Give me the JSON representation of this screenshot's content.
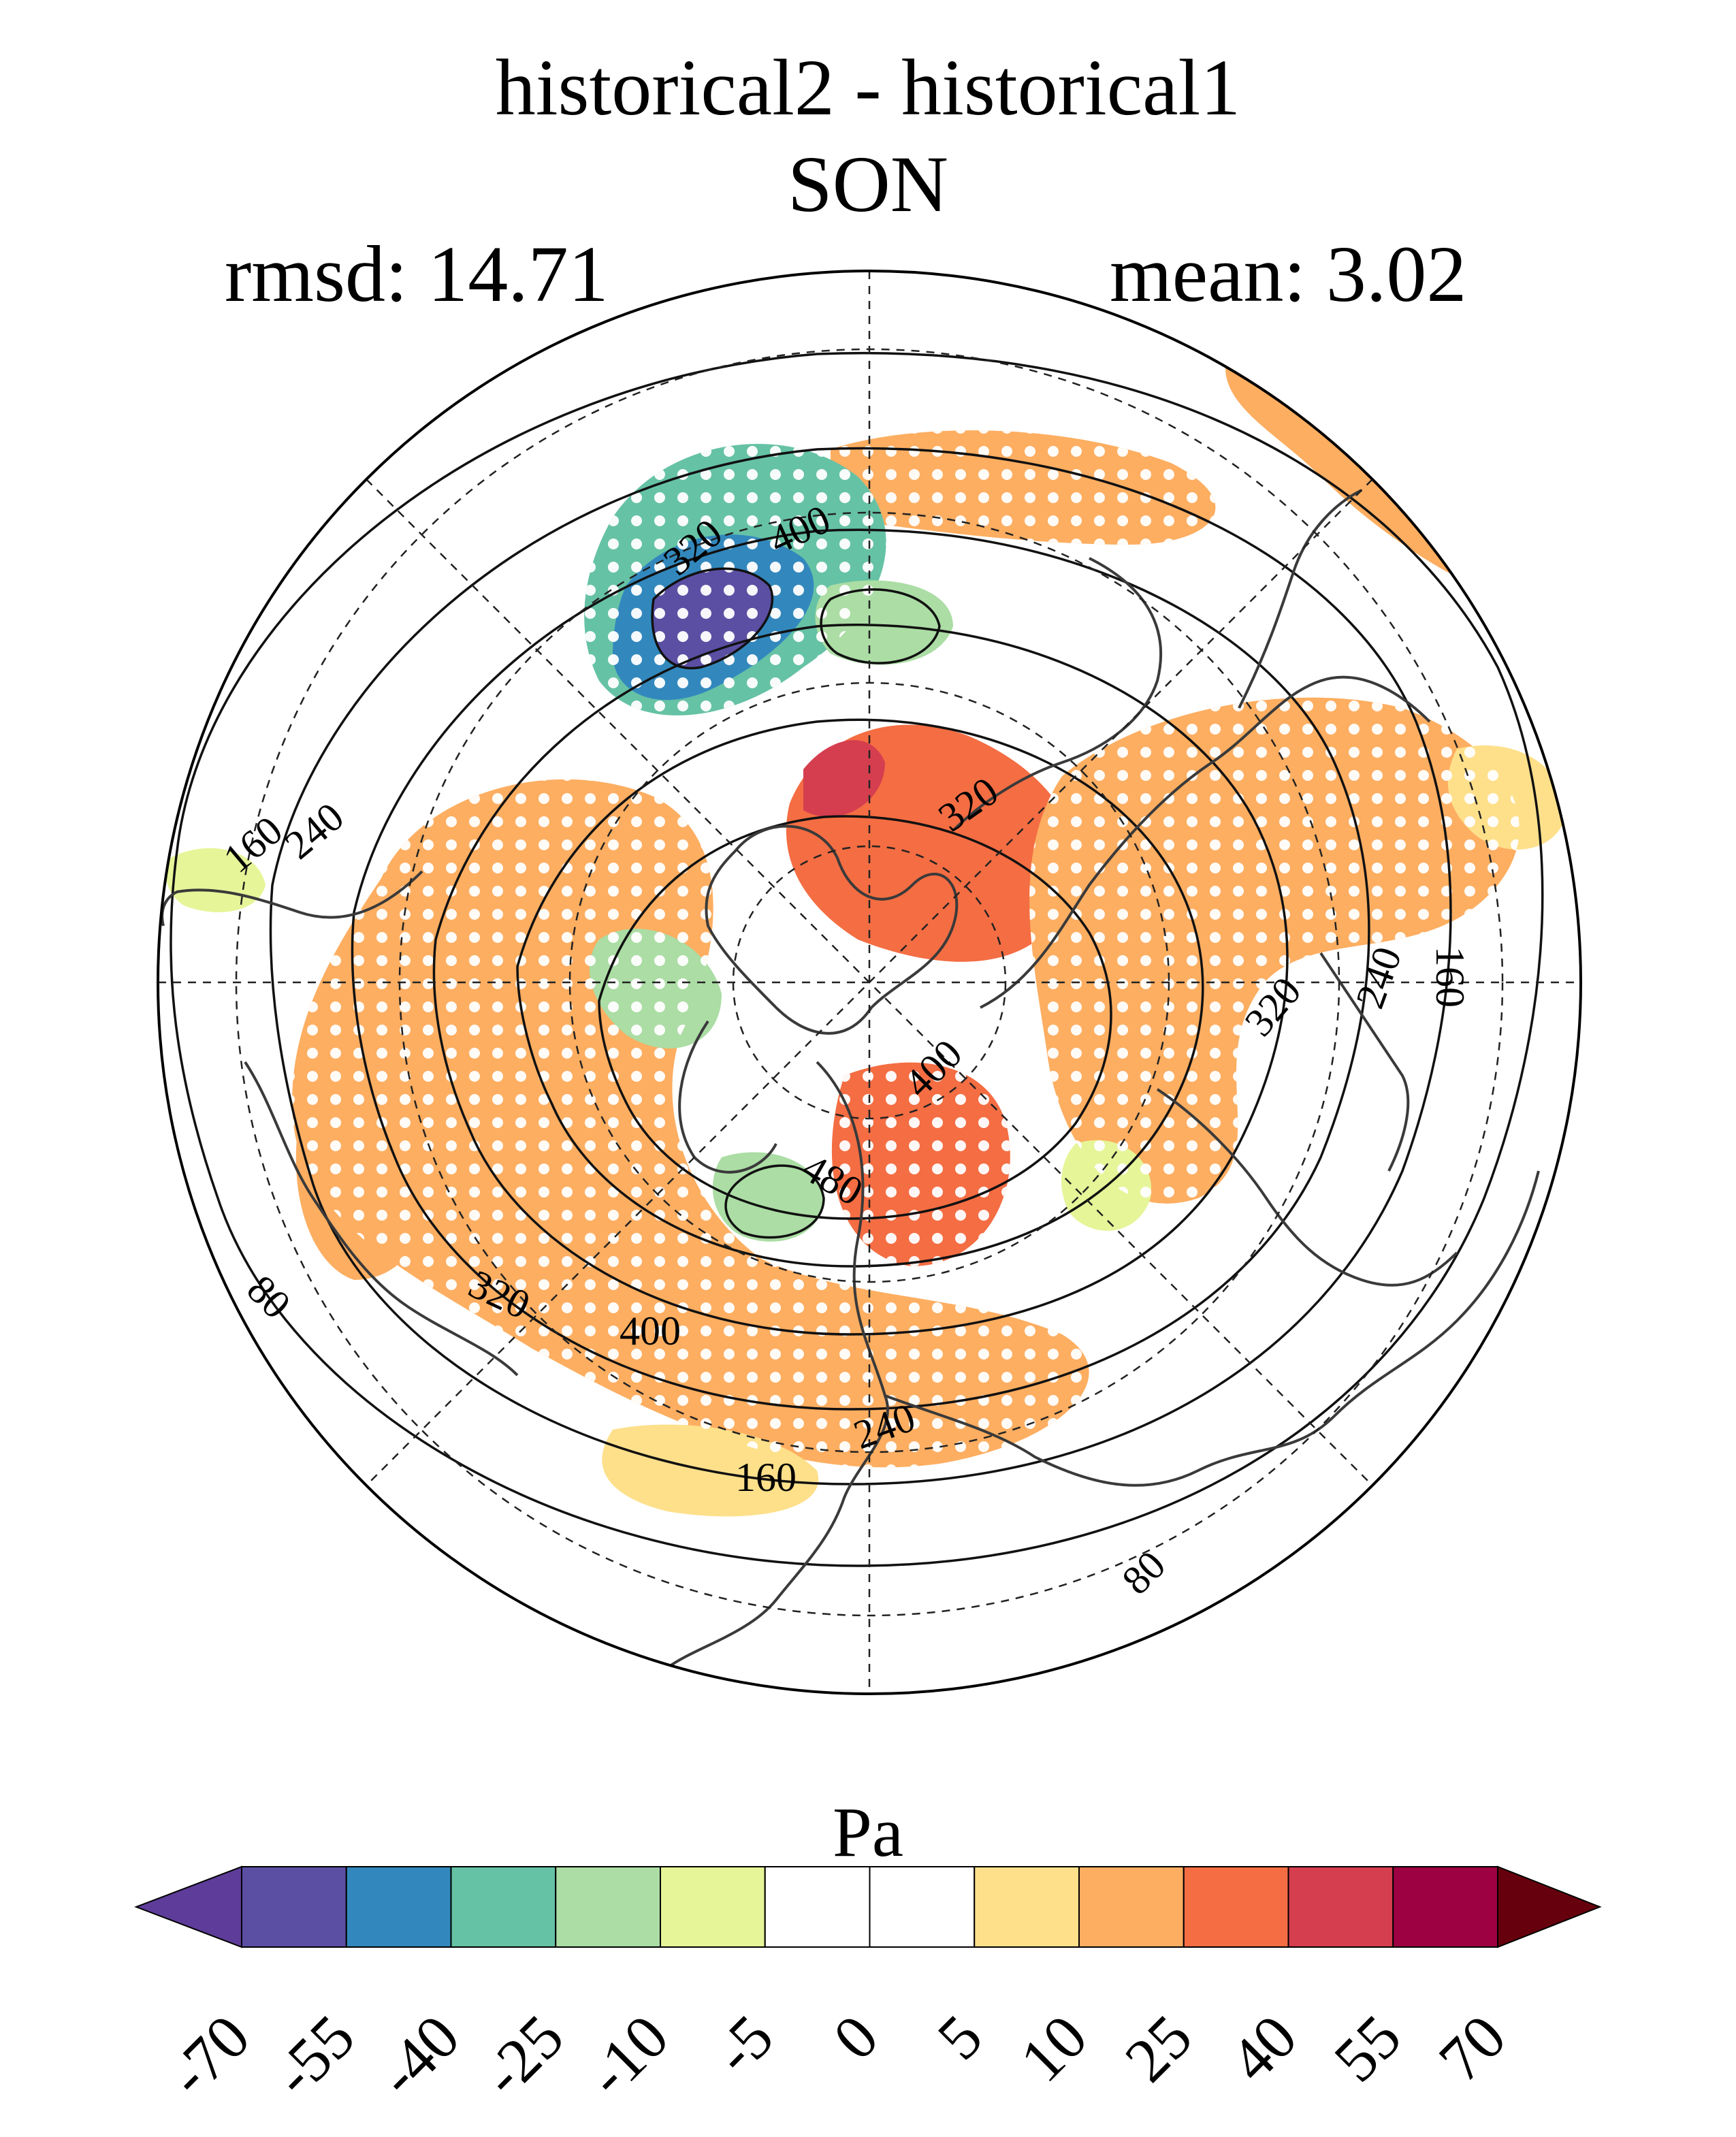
{
  "title": {
    "line1": "historical2 - historical1",
    "line2": "SON",
    "rmsd": "rmsd: 14.71",
    "mean": "mean: 3.02"
  },
  "contour_labels": [
    "320",
    "400",
    "160",
    "240",
    "320",
    "160",
    "240",
    "320",
    "400",
    "480",
    "400",
    "320",
    "80",
    "160",
    "240",
    "80"
  ],
  "colorbar": {
    "unit": "Pa",
    "ticks": [
      "-70",
      "-55",
      "-40",
      "-25",
      "-10",
      "-5",
      "0",
      "5",
      "10",
      "25",
      "40",
      "55",
      "70"
    ],
    "colors": [
      "#5e3c99",
      "#5b4fa3",
      "#3288bd",
      "#66c2a5",
      "#abdda4",
      "#e6f598",
      "#ffffff",
      "#ffffff",
      "#fee08b",
      "#fdae61",
      "#f46d43",
      "#d53e4f",
      "#9e0142",
      "#67000d"
    ]
  },
  "theme": {
    "positive_light": "#fee08b",
    "positive_mid": "#fdae61",
    "positive_strong": "#f46d43",
    "positive_max": "#d53e4f",
    "negative_light": "#e6f598",
    "negative_mid": "#abdda4",
    "negative_strong": "#66c2a5",
    "negative_max": "#5b4fa3"
  }
}
